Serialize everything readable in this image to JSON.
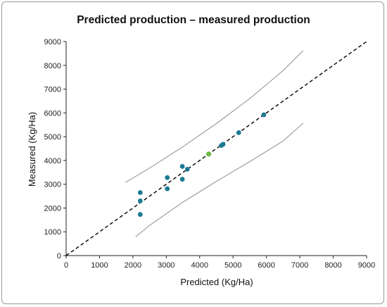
{
  "chart_data": {
    "type": "scatter",
    "title": "Predicted production – measured production",
    "xlabel": "Predicted (Kg/Ha)",
    "ylabel": "Measured (Kg/Ha)",
    "xlim": [
      0,
      9000
    ],
    "ylim": [
      0,
      9000
    ],
    "xticks": [
      0,
      1000,
      2000,
      3000,
      4000,
      5000,
      6000,
      7000,
      8000,
      9000
    ],
    "yticks": [
      0,
      1000,
      2000,
      3000,
      4000,
      5000,
      6000,
      7000,
      8000,
      9000
    ],
    "grid": false,
    "legend": "none",
    "point_color": "#1b7a93",
    "highlight_color": "#6dbb45",
    "line_color": "#000000",
    "band_color": "#999999",
    "points": [
      {
        "x": 2220,
        "y": 2650
      },
      {
        "x": 2220,
        "y": 2300
      },
      {
        "x": 2220,
        "y": 1730
      },
      {
        "x": 3030,
        "y": 3280
      },
      {
        "x": 3030,
        "y": 2810
      },
      {
        "x": 3480,
        "y": 3750
      },
      {
        "x": 3480,
        "y": 3210
      },
      {
        "x": 3630,
        "y": 3630
      },
      {
        "x": 4650,
        "y": 4630
      },
      {
        "x": 4700,
        "y": 4680
      },
      {
        "x": 5170,
        "y": 5170
      },
      {
        "x": 5920,
        "y": 5920
      }
    ],
    "highlight_points": [
      {
        "x": 4270,
        "y": 4270
      }
    ],
    "identity_line": {
      "x": [
        0,
        9000
      ],
      "y": [
        0,
        9000
      ],
      "style": "dashed"
    },
    "upper_band": {
      "x": [
        1780,
        2500,
        3500,
        4500,
        5500,
        6500,
        7100
      ],
      "y": [
        3080,
        3680,
        4580,
        5550,
        6600,
        7780,
        8620
      ]
    },
    "lower_band": {
      "x": [
        2080,
        2500,
        3500,
        4500,
        5500,
        6500,
        7100
      ],
      "y": [
        790,
        1270,
        2250,
        3120,
        3950,
        4820,
        5570
      ]
    }
  }
}
